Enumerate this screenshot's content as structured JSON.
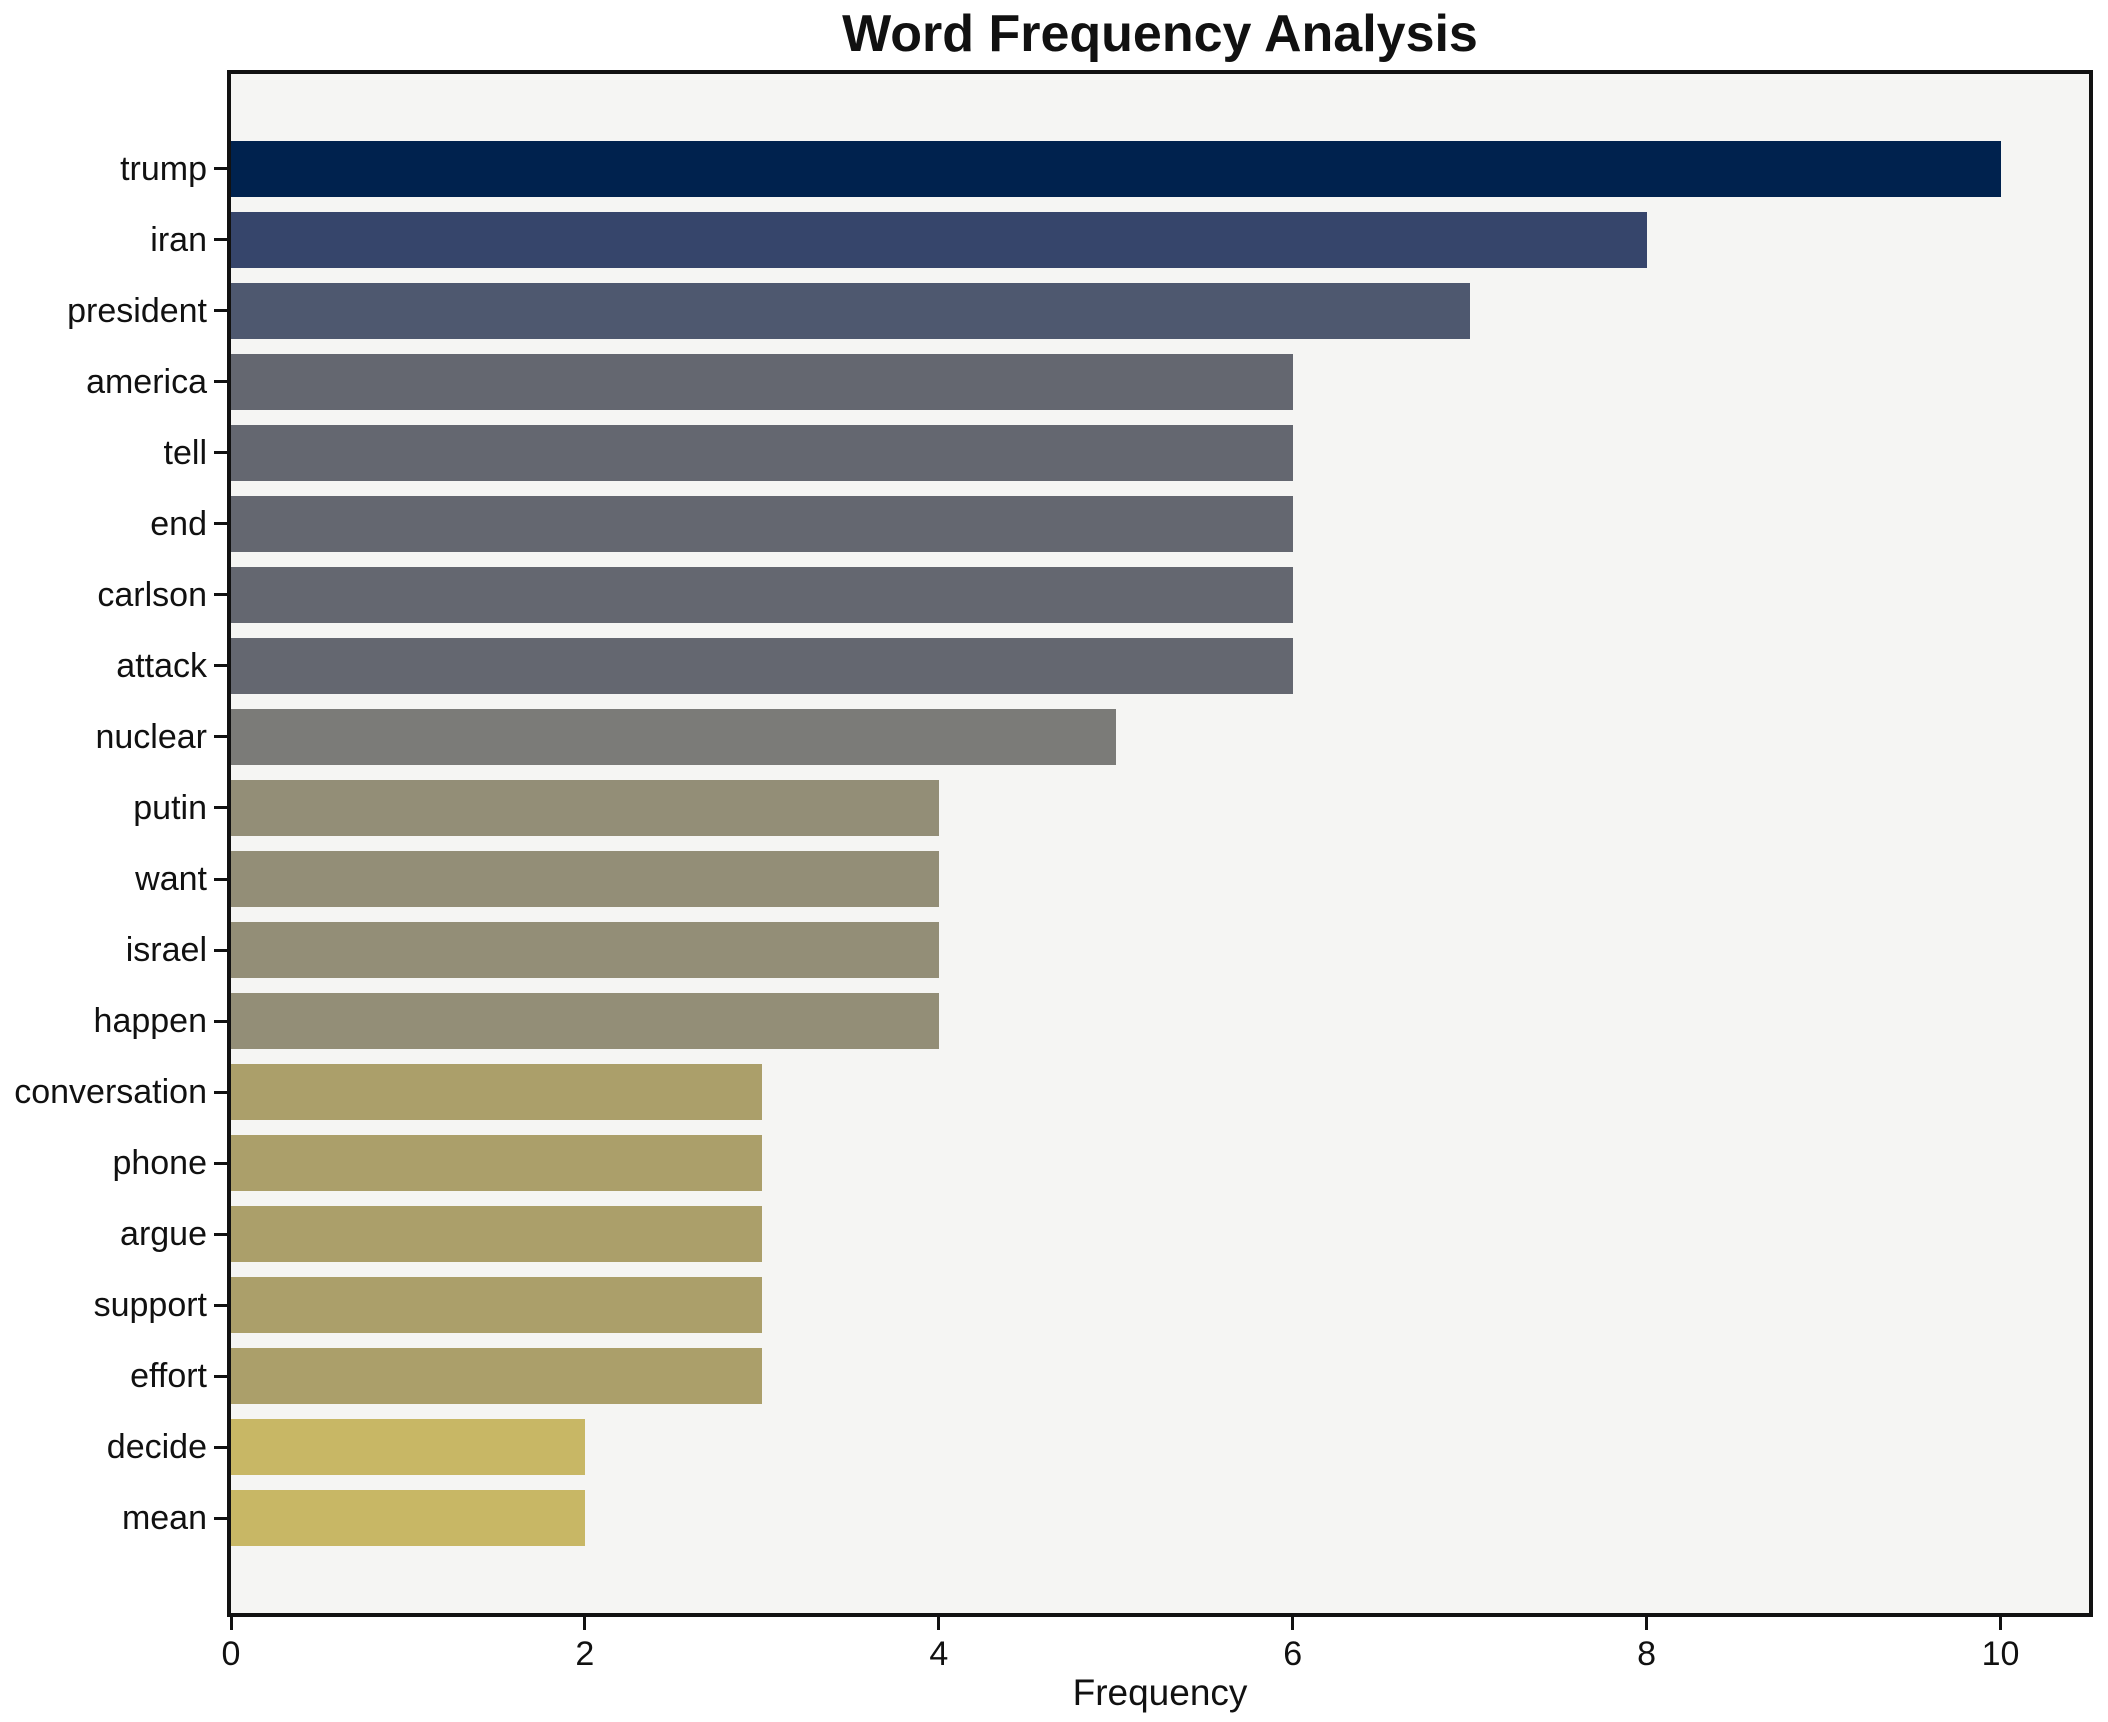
{
  "chart_data": {
    "type": "bar",
    "orientation": "horizontal",
    "title": "Word Frequency Analysis",
    "xlabel": "Frequency",
    "ylabel": "",
    "categories": [
      "trump",
      "iran",
      "president",
      "america",
      "tell",
      "end",
      "carlson",
      "attack",
      "nuclear",
      "putin",
      "want",
      "israel",
      "happen",
      "conversation",
      "phone",
      "argue",
      "support",
      "effort",
      "decide",
      "mean"
    ],
    "values": [
      10,
      8,
      7,
      6,
      6,
      6,
      6,
      6,
      5,
      4,
      4,
      4,
      4,
      3,
      3,
      3,
      3,
      3,
      2,
      2
    ],
    "bar_colors": [
      "#00224e",
      "#36456b",
      "#4e586f",
      "#646770",
      "#646770",
      "#646770",
      "#646770",
      "#646770",
      "#7b7b78",
      "#938e77",
      "#938e77",
      "#938e77",
      "#938e77",
      "#ab9f6a",
      "#ab9f6a",
      "#ab9f6a",
      "#ab9f6a",
      "#ab9f6a",
      "#c8b765",
      "#c8b765"
    ],
    "xticks": [
      0,
      2,
      4,
      6,
      8,
      10
    ],
    "xlim": [
      0,
      10.5
    ],
    "grid": false,
    "legend": "none",
    "colors": {
      "figure_bg": "#ffffff",
      "plot_bg": "#f5f5f3",
      "spine": "#111111",
      "text": "#111111"
    }
  }
}
